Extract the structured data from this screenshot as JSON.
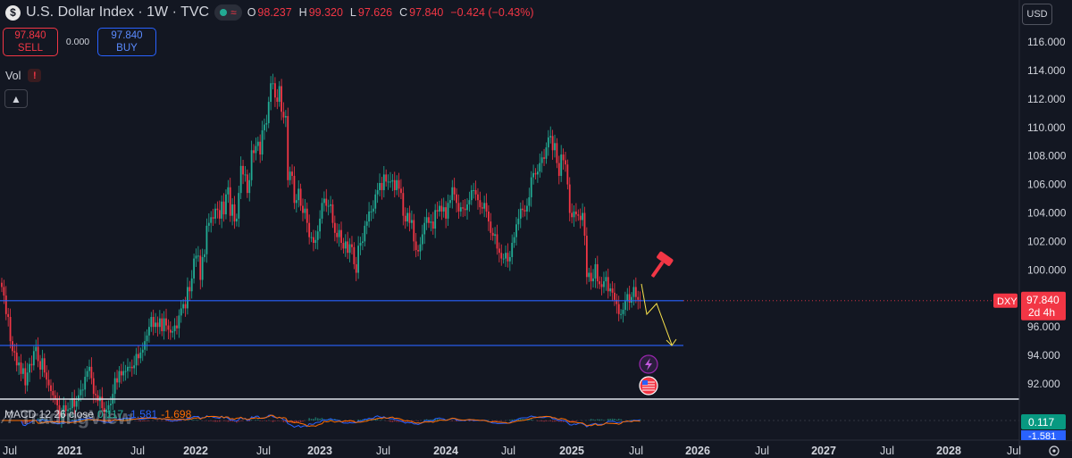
{
  "header": {
    "symbol_badge": "$",
    "title": "U.S. Dollar Index · 1W · TVC",
    "wave_icon": "≈",
    "ohlc": {
      "o_label": "O",
      "o": "98.237",
      "h_label": "H",
      "h": "99.320",
      "l_label": "L",
      "l": "97.626",
      "c_label": "C",
      "c": "97.840",
      "change": "−0.424 (−0.43%)"
    }
  },
  "trade": {
    "sell_price": "97.840",
    "sell_label": "SELL",
    "spread": "0.000",
    "buy_price": "97.840",
    "buy_label": "BUY"
  },
  "volume": {
    "label": "Vol",
    "warning": "!"
  },
  "collapse_icon": "chevron-up-icon",
  "currency": "USD",
  "price_axis": {
    "ticks": [
      "116.000",
      "114.000",
      "112.000",
      "110.000",
      "108.000",
      "106.000",
      "104.000",
      "102.000",
      "100.000",
      "96.000",
      "94.000",
      "92.000"
    ],
    "tick_values": [
      116,
      114,
      112,
      110,
      108,
      106,
      104,
      102,
      100,
      96,
      94,
      92
    ],
    "last_price": "97.840",
    "last_price_value": 97.84,
    "countdown": "2d 4h",
    "symbol_tag": "DXY",
    "macd_value": "0.117",
    "macd_value2": "-1.581"
  },
  "time_axis": {
    "labels": [
      "Jul",
      "2021",
      "Jul",
      "2022",
      "Jul",
      "2023",
      "Jul",
      "2024",
      "Jul",
      "2025",
      "Jul",
      "2026",
      "Jul",
      "2027",
      "Jul",
      "2028",
      "Jul"
    ]
  },
  "macd": {
    "label": "MACD 12 26 close",
    "v0": "0.117",
    "v1": "-1.581",
    "v2": "-1.698"
  },
  "watermark": "TradingView",
  "colors": {
    "up": "#22ab94",
    "down": "#f23645",
    "line": "#2962ff",
    "projection": "#f7e04b",
    "background": "#131722"
  },
  "chart_data": {
    "type": "candlestick",
    "ylim": [
      90.5,
      117
    ],
    "levels": [
      97.84,
      94.7
    ],
    "closes": [
      98.8,
      98.2,
      96.9,
      96.7,
      95.0,
      94.3,
      94.2,
      93.3,
      93.5,
      92.7,
      93.1,
      91.9,
      92.8,
      93.4,
      93.3,
      94.3,
      94.6,
      93.6,
      93.0,
      93.8,
      92.8,
      92.3,
      91.9,
      91.5,
      91.2,
      90.9,
      90.5,
      89.6,
      89.9,
      90.5,
      90.1,
      90.2,
      90.3,
      91.0,
      90.4,
      90.8,
      91.2,
      91.6,
      91.6,
      92.5,
      92.9,
      93.2,
      92.4,
      91.3,
      91.2,
      90.8,
      91.1,
      90.3,
      90.0,
      90.2,
      90.5,
      90.6,
      91.3,
      92.4,
      92.1,
      92.9,
      92.6,
      92.9,
      92.9,
      93.2,
      93.2,
      93.1,
      93.3,
      94.1,
      93.8,
      94.2,
      94.4,
      95.0,
      95.4,
      96.0,
      96.7,
      96.0,
      96.3,
      96.0,
      96.6,
      95.7,
      96.6,
      96.1,
      95.8,
      95.6,
      95.7,
      96.1,
      95.9,
      96.8,
      97.3,
      97.6,
      97.3,
      98.8,
      98.5,
      99.4,
      100.8,
      101.0,
      101.0,
      99.3,
      100.9,
      101.1,
      103.1,
      103.3,
      103.7,
      103.6,
      104.3,
      104.2,
      103.6,
      104.8,
      103.9,
      105.3,
      105.8,
      103.8,
      104.6,
      103.4,
      103.6,
      105.4,
      107.3,
      106.7,
      106.7,
      105.4,
      106.3,
      108.4,
      108.2,
      108.7,
      109.0,
      108.1,
      109.8,
      110.2,
      110.3,
      111.8,
      113.1,
      113.1,
      112.1,
      111.8,
      112.9,
      111.1,
      110.7,
      110.8,
      106.3,
      106.9,
      106.6,
      104.7,
      104.9,
      105.7,
      104.5,
      104.0,
      104.3,
      103.3,
      102.3,
      102.3,
      101.9,
      102.1,
      102.7,
      103.6,
      104.7,
      105.0,
      104.5,
      104.5,
      104.6,
      103.3,
      102.6,
      102.3,
      102.8,
      101.9,
      101.5,
      102.0,
      101.2,
      101.8,
      101.6,
      100.4,
      99.8,
      101.7,
      101.9,
      102.0,
      103.1,
      103.4,
      104.1,
      104.1,
      104.3,
      105.3,
      105.6,
      106.1,
      105.6,
      106.7,
      106.2,
      106.2,
      106.2,
      106.3,
      105.6,
      106.3,
      105.7,
      105.4,
      103.8,
      103.4,
      104.0,
      103.3,
      103.5,
      102.0,
      101.4,
      101.3,
      101.8,
      102.5,
      103.3,
      103.7,
      103.3,
      103.4,
      102.9,
      104.2,
      104.1,
      104.5,
      104.1,
      104.4,
      103.6,
      104.7,
      104.9,
      105.8,
      105.3,
      104.7,
      104.1,
      104.4,
      104.3,
      104.2,
      104.6,
      104.9,
      105.6,
      105.6,
      105.3,
      104.9,
      104.4,
      104.3,
      104.7,
      104.1,
      103.4,
      102.6,
      102.4,
      102.5,
      101.5,
      101.2,
      100.8,
      100.8,
      101.2,
      100.6,
      100.9,
      101.9,
      102.3,
      103.2,
      103.6,
      104.3,
      104.2,
      104.1,
      104.5,
      105.1,
      106.5,
      106.8,
      106.7,
      106.9,
      107.5,
      107.9,
      107.8,
      108.6,
      109.3,
      109.4,
      108.4,
      108.9,
      107.5,
      106.6,
      108.1,
      107.7,
      107.4,
      106.0,
      104.0,
      103.7,
      104.1,
      103.9,
      103.8,
      103.5,
      104.0,
      102.4,
      99.5,
      99.8,
      99.2,
      99.4,
      100.4,
      99.2,
      99.0,
      98.8,
      99.2,
      99.5,
      98.5,
      98.7,
      98.4,
      97.9,
      97.6,
      96.9,
      96.9,
      97.2,
      97.8,
      98.3,
      97.7,
      98.1,
      98.8,
      98.1,
      97.9,
      97.8
    ]
  }
}
